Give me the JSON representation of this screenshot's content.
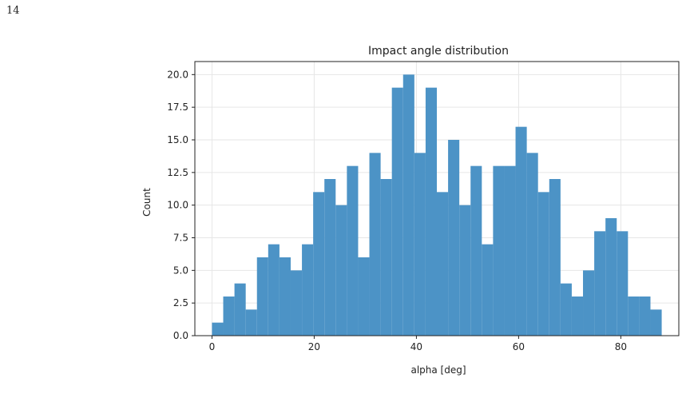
{
  "page": {
    "number": "14"
  },
  "chart_data": {
    "type": "bar",
    "subtype": "histogram",
    "title": "Impact angle distribution",
    "xlabel": "alpha [deg]",
    "ylabel": "Count",
    "bin_width": 2.2,
    "bins": [
      {
        "x": 1.1,
        "count": 1
      },
      {
        "x": 3.3,
        "count": 3
      },
      {
        "x": 5.5,
        "count": 4
      },
      {
        "x": 7.7,
        "count": 2
      },
      {
        "x": 9.9,
        "count": 6
      },
      {
        "x": 12.1,
        "count": 7
      },
      {
        "x": 14.3,
        "count": 6
      },
      {
        "x": 16.5,
        "count": 5
      },
      {
        "x": 18.7,
        "count": 7
      },
      {
        "x": 20.9,
        "count": 11
      },
      {
        "x": 23.1,
        "count": 12
      },
      {
        "x": 25.3,
        "count": 10
      },
      {
        "x": 27.5,
        "count": 13
      },
      {
        "x": 29.7,
        "count": 6
      },
      {
        "x": 31.9,
        "count": 14
      },
      {
        "x": 34.1,
        "count": 12
      },
      {
        "x": 36.3,
        "count": 19
      },
      {
        "x": 38.5,
        "count": 20
      },
      {
        "x": 40.7,
        "count": 14
      },
      {
        "x": 42.9,
        "count": 19
      },
      {
        "x": 45.1,
        "count": 11
      },
      {
        "x": 47.3,
        "count": 15
      },
      {
        "x": 49.5,
        "count": 10
      },
      {
        "x": 51.7,
        "count": 13
      },
      {
        "x": 53.9,
        "count": 7
      },
      {
        "x": 56.1,
        "count": 13
      },
      {
        "x": 58.3,
        "count": 13
      },
      {
        "x": 60.5,
        "count": 16
      },
      {
        "x": 62.7,
        "count": 14
      },
      {
        "x": 64.9,
        "count": 11
      },
      {
        "x": 67.1,
        "count": 12
      },
      {
        "x": 69.3,
        "count": 4
      },
      {
        "x": 71.5,
        "count": 3
      },
      {
        "x": 73.7,
        "count": 5
      },
      {
        "x": 75.9,
        "count": 8
      },
      {
        "x": 78.1,
        "count": 9
      },
      {
        "x": 80.3,
        "count": 8
      },
      {
        "x": 82.5,
        "count": 3
      },
      {
        "x": 84.7,
        "count": 3
      },
      {
        "x": 86.9,
        "count": 2
      }
    ],
    "xlim": [
      -3.35,
      91.35
    ],
    "ylim": [
      0,
      21
    ],
    "xticks": [
      0,
      20,
      40,
      60,
      80
    ],
    "xtick_labels": [
      "0",
      "20",
      "40",
      "60",
      "80"
    ],
    "yticks": [
      0,
      2.5,
      5,
      7.5,
      10,
      12.5,
      15,
      17.5,
      20
    ],
    "ytick_labels": [
      "0.0",
      "2.5",
      "5.0",
      "7.5",
      "10.0",
      "12.5",
      "15.0",
      "17.5",
      "20.0"
    ],
    "grid": true,
    "colors": {
      "bar": "#4c93c6",
      "grid": "#e6e6e6",
      "axis": "#222222"
    }
  }
}
